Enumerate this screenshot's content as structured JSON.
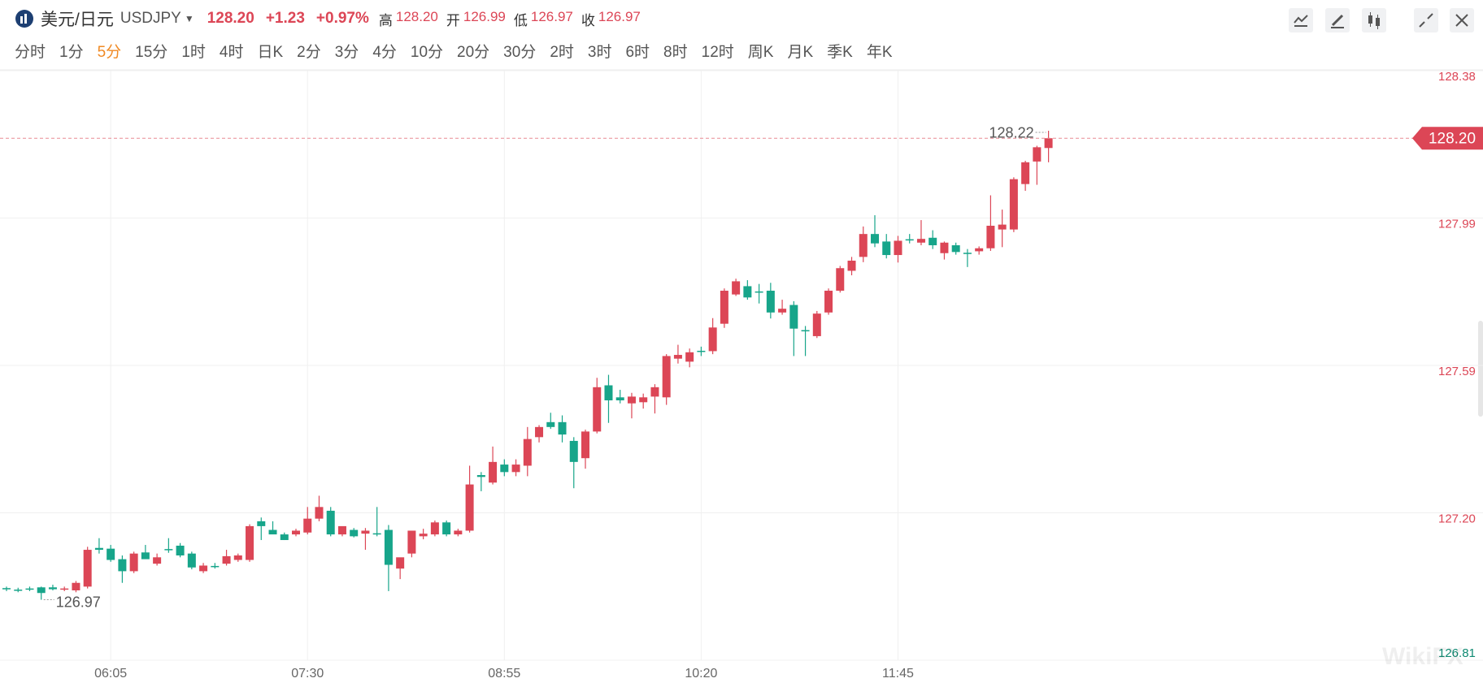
{
  "header": {
    "name": "美元/日元",
    "symbol": "USDJPY",
    "price": "128.20",
    "change": "+1.23",
    "change_pct": "+0.97%",
    "stats": [
      {
        "label": "高",
        "value": "128.20"
      },
      {
        "label": "开",
        "value": "126.99"
      },
      {
        "label": "低",
        "value": "126.97"
      },
      {
        "label": "收",
        "value": "126.97"
      }
    ]
  },
  "tabs": [
    "分时",
    "1分",
    "5分",
    "15分",
    "1时",
    "4时",
    "日K",
    "2分",
    "3分",
    "4分",
    "10分",
    "20分",
    "30分",
    "2时",
    "3时",
    "6时",
    "8时",
    "12时",
    "周K",
    "月K",
    "季K",
    "年K"
  ],
  "active_tab": 2,
  "chart_data": {
    "type": "candlestick",
    "up_color": "#dc4656",
    "down_color": "#17a58a",
    "grid": true,
    "ylim": [
      126.81,
      128.38
    ],
    "yticks": [
      126.81,
      {
        "value": 127.2025,
        "label": "127.20"
      },
      {
        "value": 127.595,
        "label": "127.59"
      },
      {
        "value": 127.9875,
        "label": "127.99"
      },
      128.38
    ],
    "categories": [
      null,
      null,
      null,
      null,
      null,
      null,
      null,
      null,
      null,
      "06:05",
      null,
      null,
      null,
      null,
      null,
      null,
      null,
      null,
      null,
      null,
      null,
      null,
      null,
      null,
      null,
      null,
      "07:30",
      null,
      null,
      null,
      null,
      null,
      null,
      null,
      null,
      null,
      null,
      null,
      null,
      null,
      null,
      null,
      null,
      "08:55",
      null,
      null,
      null,
      null,
      null,
      null,
      null,
      null,
      null,
      null,
      null,
      null,
      null,
      null,
      null,
      null,
      "10:20",
      null,
      null,
      null,
      null,
      null,
      null,
      null,
      null,
      null,
      null,
      null,
      null,
      null,
      null,
      null,
      null,
      "11:45",
      null,
      null,
      null,
      null,
      null,
      null,
      null,
      null,
      null,
      null,
      null,
      null,
      null
    ],
    "series": {
      "open": [
        127.002,
        126.998,
        127.001,
        127.004,
        127.004,
        127.0,
        126.996,
        127.006,
        127.109,
        127.107,
        127.079,
        127.047,
        127.097,
        127.067,
        127.106,
        127.115,
        127.094,
        127.047,
        127.061,
        127.067,
        127.077,
        127.077,
        127.18,
        127.157,
        127.145,
        127.145,
        127.15,
        127.187,
        127.208,
        127.145,
        127.157,
        127.147,
        127.148,
        127.157,
        127.054,
        127.094,
        127.14,
        127.145,
        127.177,
        127.145,
        127.155,
        127.303,
        127.283,
        127.331,
        127.311,
        127.328,
        127.404,
        127.444,
        127.444,
        127.394,
        127.348,
        127.419,
        127.542,
        127.51,
        127.494,
        127.497,
        127.512,
        127.51,
        127.613,
        127.605,
        127.634,
        127.633,
        127.706,
        127.784,
        127.806,
        127.792,
        127.794,
        127.736,
        127.756,
        127.689,
        127.673,
        127.736,
        127.794,
        127.847,
        127.884,
        127.945,
        127.925,
        127.889,
        127.931,
        127.922,
        127.935,
        127.894,
        127.915,
        127.895,
        127.899,
        127.907,
        127.957,
        127.957,
        128.078,
        128.138,
        128.174
      ],
      "high": [
        127.006,
        127.003,
        127.006,
        127.006,
        127.011,
        127.006,
        127.021,
        127.112,
        127.135,
        127.117,
        127.089,
        127.099,
        127.117,
        127.094,
        127.135,
        127.122,
        127.099,
        127.069,
        127.069,
        127.104,
        127.094,
        127.172,
        127.19,
        127.18,
        127.15,
        127.16,
        127.218,
        127.248,
        127.218,
        127.16,
        127.162,
        127.162,
        127.218,
        127.17,
        127.074,
        127.15,
        127.16,
        127.182,
        127.182,
        127.16,
        127.328,
        127.311,
        127.379,
        127.345,
        127.345,
        127.431,
        127.436,
        127.469,
        127.462,
        127.404,
        127.424,
        127.562,
        127.57,
        127.53,
        127.522,
        127.52,
        127.545,
        127.625,
        127.65,
        127.64,
        127.645,
        127.721,
        127.8,
        127.826,
        127.822,
        127.812,
        127.815,
        127.77,
        127.766,
        127.7,
        127.74,
        127.8,
        127.86,
        127.884,
        127.965,
        127.995,
        127.945,
        127.94,
        127.945,
        127.982,
        127.955,
        127.925,
        127.922,
        127.905,
        127.912,
        128.048,
        128.01,
        128.096,
        128.14,
        128.18,
        128.22
      ],
      "low": [
        126.994,
        126.991,
        126.994,
        126.971,
        126.996,
        126.994,
        126.991,
        127.001,
        127.094,
        127.072,
        127.016,
        127.042,
        127.084,
        127.062,
        127.096,
        127.084,
        127.052,
        127.042,
        127.054,
        127.062,
        127.072,
        127.072,
        127.13,
        127.15,
        127.13,
        127.14,
        127.145,
        127.18,
        127.14,
        127.14,
        127.137,
        127.104,
        127.14,
        126.994,
        127.026,
        127.084,
        127.132,
        127.14,
        127.14,
        127.14,
        127.15,
        127.26,
        127.278,
        127.3,
        127.3,
        127.3,
        127.39,
        127.426,
        127.39,
        127.268,
        127.32,
        127.414,
        127.442,
        127.494,
        127.454,
        127.48,
        127.467,
        127.49,
        127.6,
        127.59,
        127.62,
        127.625,
        127.695,
        127.78,
        127.77,
        127.76,
        127.72,
        127.73,
        127.62,
        127.62,
        127.668,
        127.73,
        127.789,
        127.835,
        127.87,
        127.91,
        127.88,
        127.869,
        127.92,
        127.915,
        127.905,
        127.877,
        127.89,
        127.857,
        127.89,
        127.9,
        127.91,
        127.95,
        128.06,
        128.076,
        128.136
      ],
      "close": [
        127.0,
        126.996,
        127.0,
        126.989,
        126.999,
        127.001,
        127.016,
        127.104,
        127.104,
        127.077,
        127.047,
        127.094,
        127.079,
        127.084,
        127.104,
        127.089,
        127.057,
        127.062,
        127.059,
        127.087,
        127.089,
        127.167,
        127.167,
        127.145,
        127.13,
        127.155,
        127.187,
        127.218,
        127.145,
        127.167,
        127.14,
        127.155,
        127.147,
        127.064,
        127.084,
        127.155,
        127.147,
        127.177,
        127.145,
        127.155,
        127.278,
        127.298,
        127.338,
        127.311,
        127.331,
        127.399,
        127.431,
        127.431,
        127.411,
        127.338,
        127.419,
        127.537,
        127.502,
        127.502,
        127.512,
        127.51,
        127.537,
        127.62,
        127.623,
        127.63,
        127.633,
        127.696,
        127.794,
        127.819,
        127.776,
        127.791,
        127.736,
        127.746,
        127.693,
        127.688,
        127.733,
        127.794,
        127.854,
        127.874,
        127.945,
        127.92,
        127.889,
        127.927,
        127.93,
        127.932,
        127.915,
        127.922,
        127.897,
        127.894,
        127.907,
        127.967,
        127.97,
        128.091,
        128.136,
        128.176,
        128.2
      ]
    },
    "max_label": "128.22",
    "min_label": "126.97",
    "last_price_label": "128.20",
    "watermark": "WikiFX"
  }
}
